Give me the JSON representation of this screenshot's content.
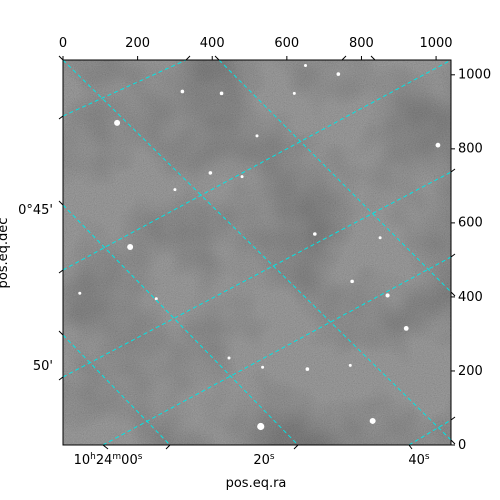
{
  "chart_data": {
    "type": "image",
    "title": "",
    "xlabel": "pos.eq.ra",
    "ylabel": "pos.eq.dec",
    "pixel_axes": {
      "x_range": [
        0,
        1040
      ],
      "y_range": [
        0,
        1040
      ],
      "top_ticks": [
        0,
        200,
        400,
        600,
        800,
        1000
      ],
      "right_ticks": [
        0,
        200,
        400,
        600,
        800,
        1000
      ]
    },
    "world_ticks": {
      "ra": [
        {
          "label": "10h24m00s",
          "value": 0
        },
        {
          "label": "20s",
          "value": 20
        },
        {
          "label": "40s",
          "value": 40
        }
      ],
      "dec": [
        {
          "label": "0°45'",
          "value": 45
        },
        {
          "label": "50'",
          "value": 50
        }
      ]
    },
    "grid": true,
    "grid_color": "#00e5e5",
    "image_colormap": "gray",
    "stars": [
      {
        "x": 145,
        "y": 870,
        "mag": 4
      },
      {
        "x": 425,
        "y": 950,
        "mag": 2
      },
      {
        "x": 320,
        "y": 955,
        "mag": 2
      },
      {
        "x": 520,
        "y": 835,
        "mag": 1.5
      },
      {
        "x": 738,
        "y": 1002,
        "mag": 2
      },
      {
        "x": 1005,
        "y": 810,
        "mag": 3
      },
      {
        "x": 180,
        "y": 535,
        "mag": 4
      },
      {
        "x": 395,
        "y": 735,
        "mag": 2
      },
      {
        "x": 480,
        "y": 725,
        "mag": 1.5
      },
      {
        "x": 675,
        "y": 570,
        "mag": 2
      },
      {
        "x": 775,
        "y": 442,
        "mag": 2
      },
      {
        "x": 870,
        "y": 404,
        "mag": 2.5
      },
      {
        "x": 920,
        "y": 315,
        "mag": 3
      },
      {
        "x": 445,
        "y": 235,
        "mag": 1.5
      },
      {
        "x": 655,
        "y": 205,
        "mag": 2
      },
      {
        "x": 535,
        "y": 210,
        "mag": 1.5
      },
      {
        "x": 770,
        "y": 215,
        "mag": 1.5
      },
      {
        "x": 530,
        "y": 50,
        "mag": 5
      },
      {
        "x": 830,
        "y": 65,
        "mag": 4
      },
      {
        "x": 850,
        "y": 560,
        "mag": 1.5
      },
      {
        "x": 250,
        "y": 395,
        "mag": 1.5
      },
      {
        "x": 620,
        "y": 950,
        "mag": 1.5
      },
      {
        "x": 300,
        "y": 690,
        "mag": 1.5
      },
      {
        "x": 45,
        "y": 410,
        "mag": 1.5
      },
      {
        "x": 650,
        "y": 1025,
        "mag": 1.5
      }
    ]
  }
}
